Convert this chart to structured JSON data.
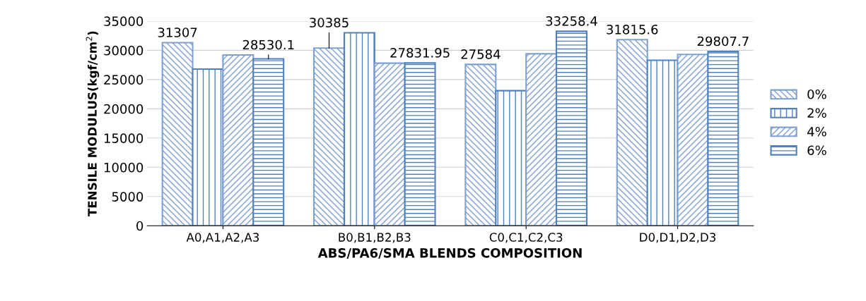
{
  "chart_data": {
    "type": "bar",
    "xlabel": "ABS/PA6/SMA BLENDS COMPOSITION",
    "ylabel": "TENSILE MODULUS(kgf/cm$^{2}$)",
    "categories": [
      "A0,A1,A2,A3",
      "B0,B1,B2,B3",
      "C0,C1,C2,C3",
      "D0,D1,D2,D3"
    ],
    "series": [
      {
        "name": "0%",
        "color": "#7f9fd0",
        "values": [
          31307,
          30385,
          27584,
          31815.6
        ],
        "value_labels": [
          "31307",
          "30385",
          "27584",
          "31815.6"
        ]
      },
      {
        "name": "2%",
        "color": "#4f81bd",
        "values": [
          26800,
          33000,
          23100,
          28300
        ]
      },
      {
        "name": "4%",
        "color": "#7f9fd0",
        "values": [
          29200,
          27800,
          29400,
          29300
        ]
      },
      {
        "name": "6%",
        "color": "#4f81bd",
        "values": [
          28530.1,
          27831.95,
          33258.4,
          29807.7
        ],
        "value_labels": [
          "28530.1",
          "27831.95",
          "33258.4",
          "29807.7"
        ]
      }
    ],
    "ylim": [
      0,
      35000
    ],
    "yticks": [
      0,
      5000,
      10000,
      15000,
      20000,
      25000,
      30000,
      35000
    ],
    "grid": "y",
    "legend": "right"
  }
}
